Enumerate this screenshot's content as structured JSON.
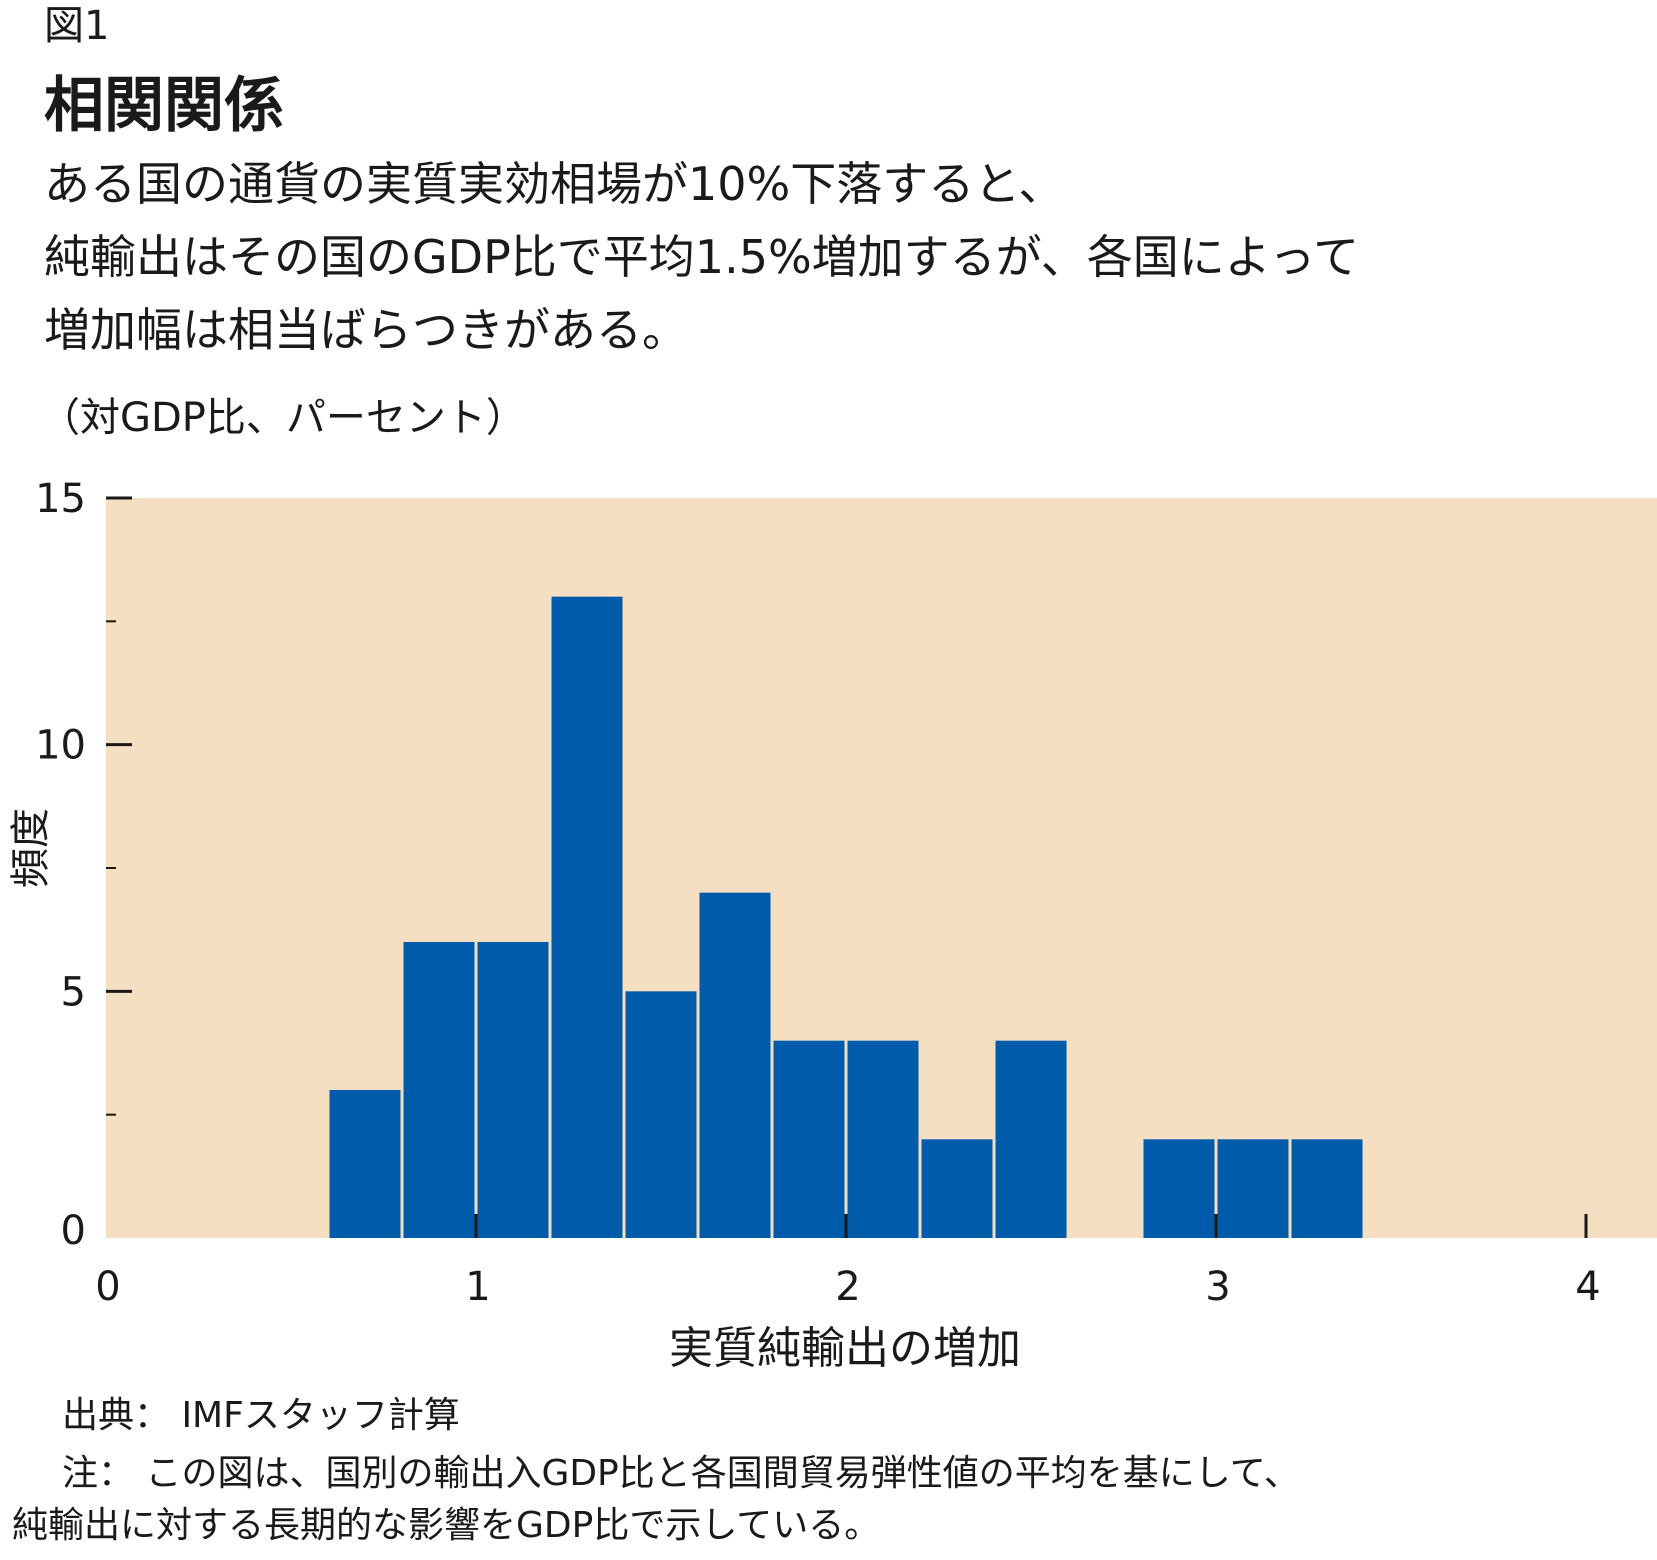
{
  "figure_label": "図1",
  "title": "相関関係",
  "subtitle_lines": [
    "ある国の通貨の実質実効相場が10%下落すると、",
    "純輸出はその国のGDP比で平均1.5%増加するが、各国によって",
    "増加幅は相当ばらつきがある。"
  ],
  "unit_label": "（対GDP比、パーセント）",
  "source": "出典： IMFスタッフ計算",
  "note_lines": [
    "注： この図は、国別の輸出入GDP比と各国間貿易弾性値の平均を基にして、",
    "純輸出に対する長期的な影響をGDP比で示している。"
  ],
  "colors": {
    "plot_background": "#f5dfc2",
    "bar": "#005bab",
    "bar_edge": "#ffffff"
  },
  "chart_data": {
    "type": "bar",
    "subtype": "histogram",
    "bin_width": 0.2,
    "bins": [
      {
        "start": 0.6,
        "end": 0.8,
        "count": 3
      },
      {
        "start": 0.8,
        "end": 1.0,
        "count": 6
      },
      {
        "start": 1.0,
        "end": 1.2,
        "count": 6
      },
      {
        "start": 1.2,
        "end": 1.4,
        "count": 13
      },
      {
        "start": 1.4,
        "end": 1.6,
        "count": 5
      },
      {
        "start": 1.6,
        "end": 1.8,
        "count": 7
      },
      {
        "start": 1.8,
        "end": 2.0,
        "count": 4
      },
      {
        "start": 2.0,
        "end": 2.2,
        "count": 4
      },
      {
        "start": 2.2,
        "end": 2.4,
        "count": 2
      },
      {
        "start": 2.4,
        "end": 2.6,
        "count": 4
      },
      {
        "start": 2.8,
        "end": 3.0,
        "count": 2
      },
      {
        "start": 3.0,
        "end": 3.2,
        "count": 2
      },
      {
        "start": 3.2,
        "end": 3.4,
        "count": 2
      }
    ],
    "xlabel": "実質純輸出の増加",
    "ylabel": "頻度",
    "xlim": [
      0,
      4.2
    ],
    "ylim": [
      0,
      15
    ],
    "x_ticks": [
      0,
      1,
      2,
      3,
      4
    ],
    "x_tick_labels": [
      "0",
      "1",
      "2",
      "3",
      "4"
    ],
    "y_ticks": [
      0,
      5,
      10,
      15
    ],
    "y_tick_labels": [
      "0",
      "5",
      "10",
      "15"
    ],
    "y_minor_ticks": [
      2.5,
      7.5,
      12.5
    ],
    "grid": false,
    "legend": "none"
  }
}
